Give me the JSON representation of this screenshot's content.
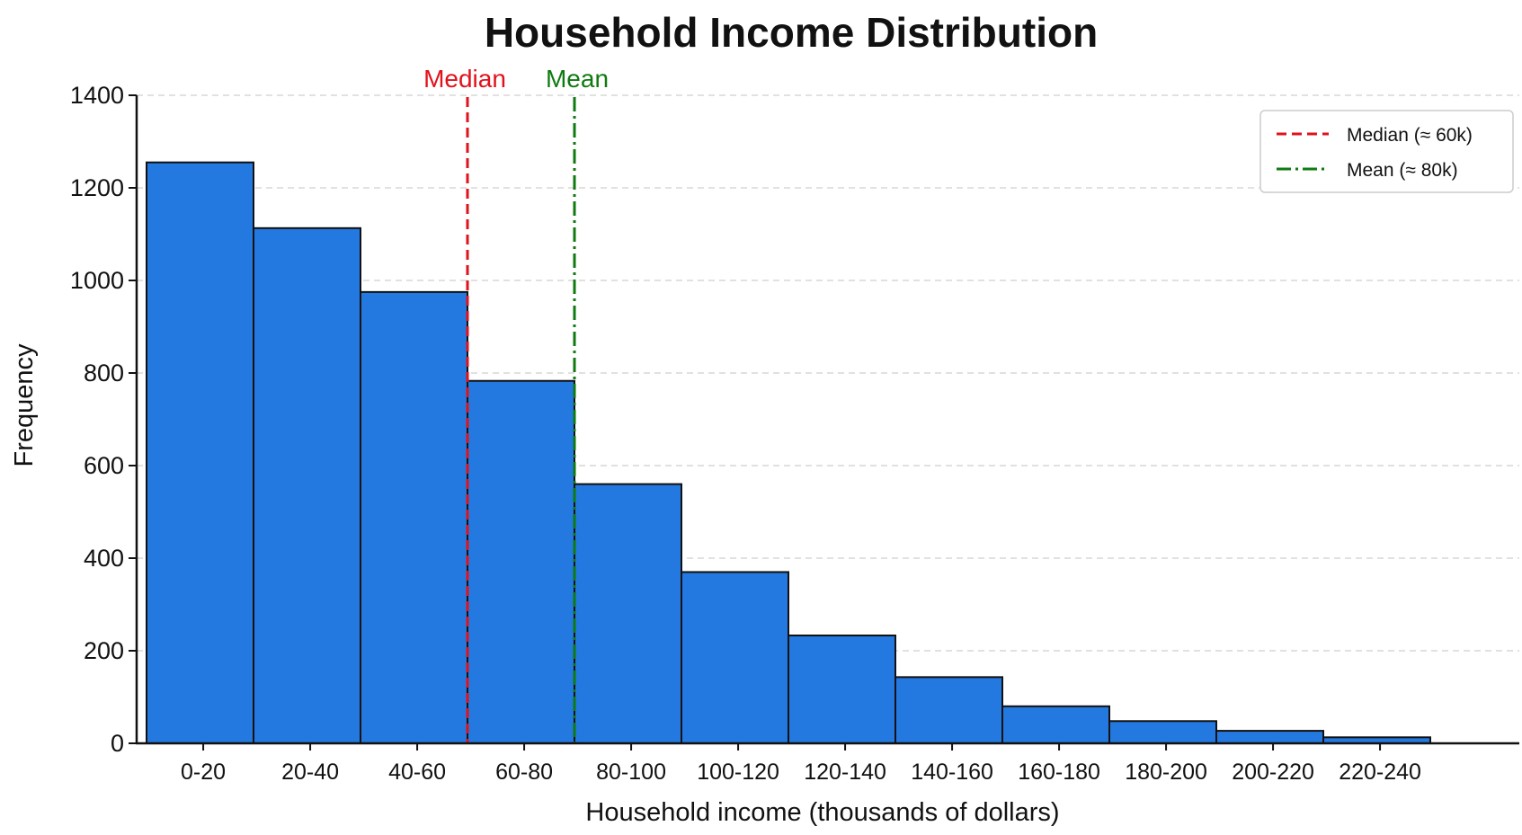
{
  "chart_data": {
    "type": "bar",
    "title": "Household Income Distribution",
    "xlabel": "Household income (thousands of dollars)",
    "ylabel": "Frequency",
    "ylim": [
      0,
      1400
    ],
    "yticks": [
      0,
      200,
      400,
      600,
      800,
      1000,
      1200,
      1400
    ],
    "categories": [
      "0-20",
      "20-40",
      "40-60",
      "60-80",
      "80-100",
      "100-120",
      "120-140",
      "140-160",
      "160-180",
      "180-200",
      "200-220",
      "220-240"
    ],
    "values": [
      1255,
      1113,
      975,
      783,
      560,
      370,
      233,
      143,
      80,
      48,
      27,
      13
    ],
    "bar_color": "#2479e0",
    "grid": "horizontal dashed",
    "median": {
      "label": "Median",
      "value": 60,
      "color": "#e0121c",
      "style": "dashed",
      "legend": "Median (≈ 60k)"
    },
    "mean": {
      "label": "Mean",
      "value": 80,
      "color": "#0f7a10",
      "style": "dash-dot",
      "legend": "Mean (≈ 80k)"
    },
    "legend_position": "top-right"
  }
}
